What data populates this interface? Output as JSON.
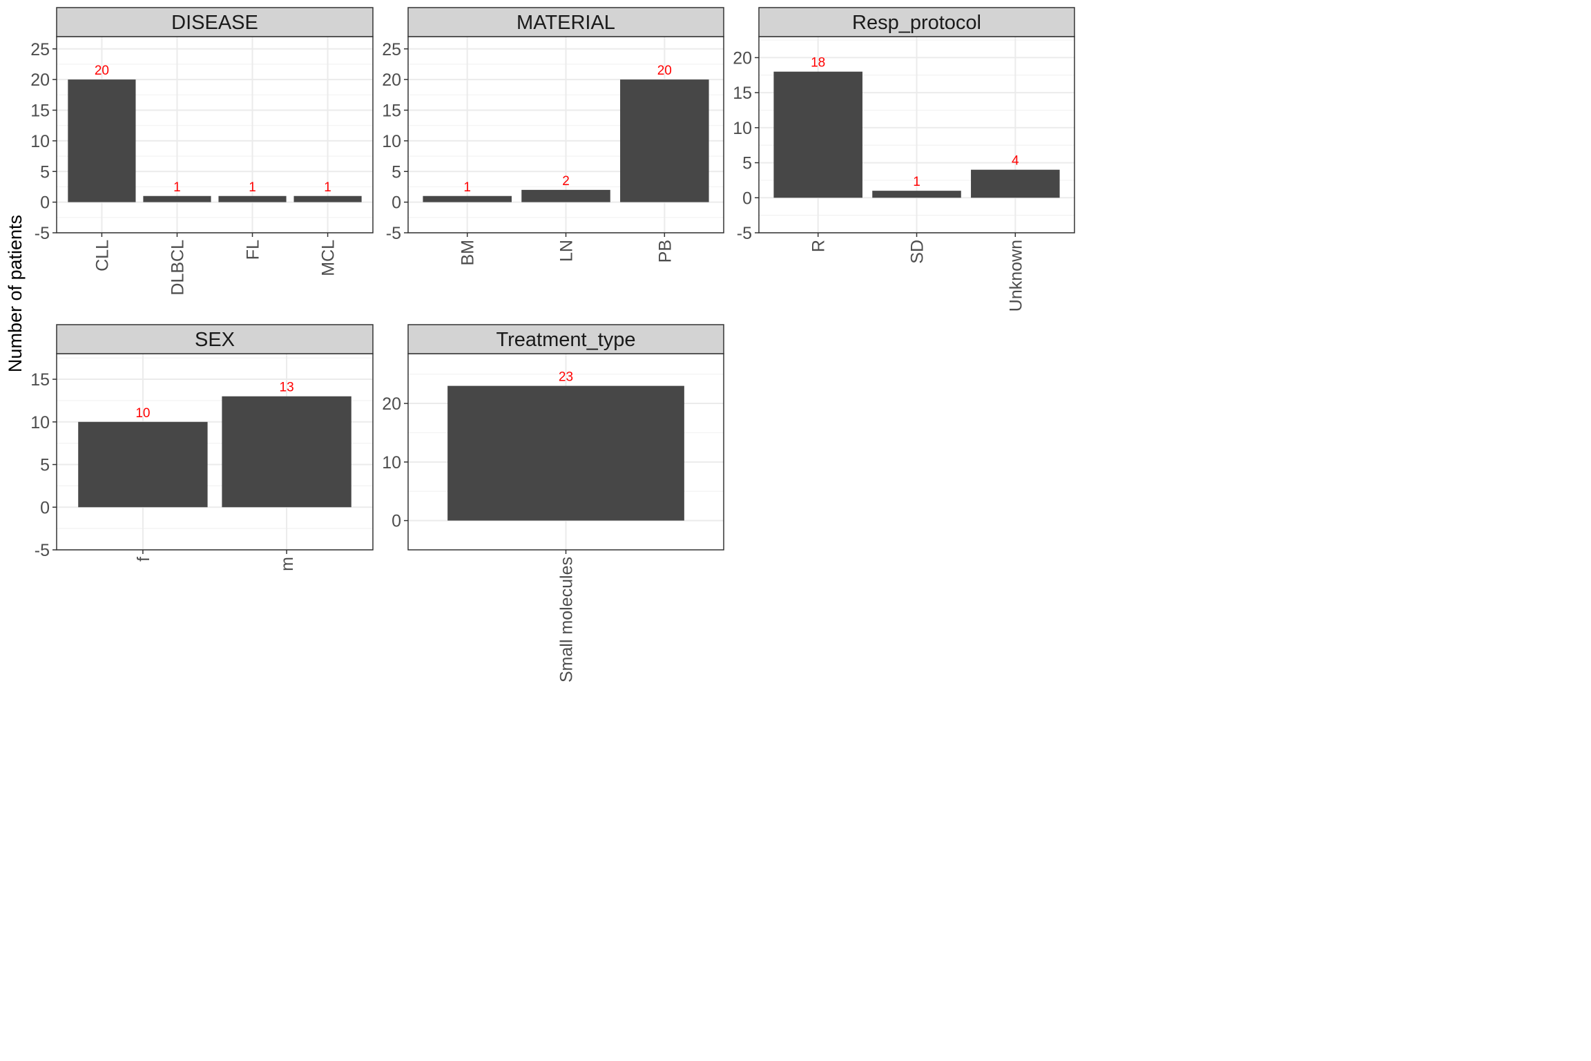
{
  "chart_data": {
    "type": "bar",
    "ylabel": "Number of patients",
    "label_color": "#ff0000",
    "bar_color": "#474747",
    "strip_color": "#d3d3d3",
    "grid": true,
    "facets": [
      {
        "title": "DISEASE",
        "categories": [
          "CLL",
          "DLBCL",
          "FL",
          "MCL"
        ],
        "values": [
          20,
          1,
          1,
          1
        ],
        "value_labels": [
          "20",
          "1",
          "1",
          "1"
        ],
        "ylim": [
          -5,
          27
        ],
        "yticks": [
          -5,
          0,
          5,
          10,
          15,
          20,
          25
        ],
        "ytick_labels": [
          "-5",
          "0",
          "5",
          "10",
          "15",
          "20",
          "25"
        ]
      },
      {
        "title": "MATERIAL",
        "categories": [
          "BM",
          "LN",
          "PB"
        ],
        "values": [
          1,
          2,
          20
        ],
        "value_labels": [
          "1",
          "2",
          "20"
        ],
        "ylim": [
          -5,
          27
        ],
        "yticks": [
          -5,
          0,
          5,
          10,
          15,
          20,
          25
        ],
        "ytick_labels": [
          "-5",
          "0",
          "5",
          "10",
          "15",
          "20",
          "25"
        ]
      },
      {
        "title": "Resp_protocol",
        "categories": [
          "R",
          "SD",
          "Unknown"
        ],
        "values": [
          18,
          1,
          4
        ],
        "value_labels": [
          "18",
          "1",
          "4"
        ],
        "ylim": [
          -5,
          23
        ],
        "yticks": [
          -5,
          0,
          5,
          10,
          15,
          20
        ],
        "ytick_labels": [
          "-5",
          "0",
          "5",
          "10",
          "15",
          "20"
        ]
      },
      {
        "title": "SEX",
        "categories": [
          "f",
          "m"
        ],
        "values": [
          10,
          13
        ],
        "value_labels": [
          "10",
          "13"
        ],
        "ylim": [
          -5,
          18
        ],
        "yticks": [
          -5,
          0,
          5,
          10,
          15
        ],
        "ytick_labels": [
          "-5",
          "0",
          "5",
          "10",
          "15"
        ]
      },
      {
        "title": "Treatment_type",
        "categories": [
          "Small molecules"
        ],
        "values": [
          23
        ],
        "value_labels": [
          "23"
        ],
        "ylim": [
          -5,
          28.5
        ],
        "yticks": [
          0,
          10,
          20
        ],
        "ytick_labels": [
          "0",
          "10",
          "20"
        ]
      }
    ]
  }
}
